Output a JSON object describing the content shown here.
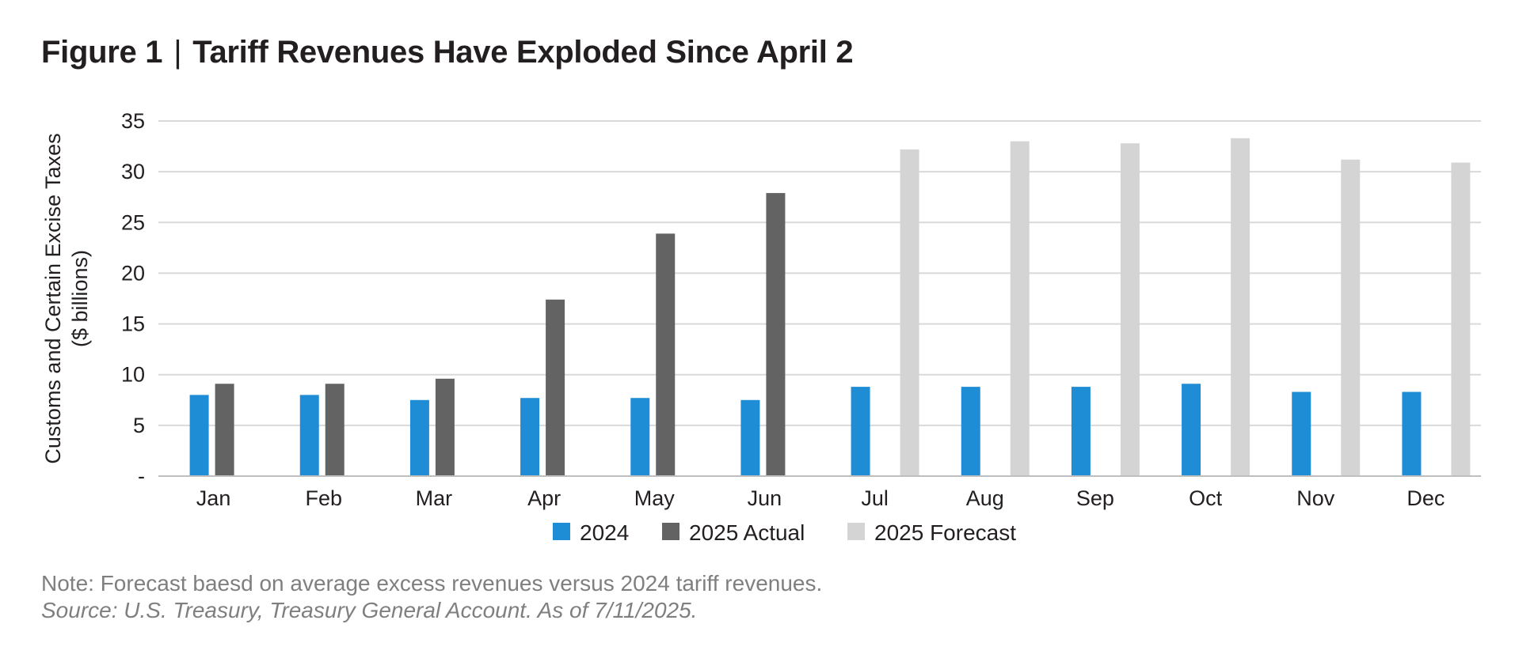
{
  "title": {
    "figure_label": "Figure 1",
    "separator": "|",
    "text": "Tariff Revenues Have Exploded Since April 2"
  },
  "chart_data": {
    "type": "bar",
    "categories": [
      "Jan",
      "Feb",
      "Mar",
      "Apr",
      "May",
      "Jun",
      "Jul",
      "Aug",
      "Sep",
      "Oct",
      "Nov",
      "Dec"
    ],
    "series": [
      {
        "name": "2024",
        "color": "#1f8dd6",
        "values": [
          8.0,
          8.0,
          7.5,
          7.7,
          7.7,
          7.5,
          8.8,
          8.8,
          8.8,
          9.1,
          8.3,
          8.3
        ]
      },
      {
        "name": "2025 Actual",
        "color": "#636363",
        "values": [
          9.1,
          9.1,
          9.6,
          17.4,
          23.9,
          27.9,
          null,
          null,
          null,
          null,
          null,
          null
        ]
      },
      {
        "name": "2025 Forecast",
        "color": "#d4d4d4",
        "values": [
          null,
          null,
          null,
          null,
          null,
          null,
          32.2,
          33.0,
          32.8,
          33.3,
          31.2,
          30.9
        ]
      }
    ],
    "ylabel_lines": [
      "Customs and Certain Excise Taxes",
      "($ billions)"
    ],
    "xlabel": "",
    "ylim": [
      0,
      35
    ],
    "yticks": [
      {
        "value": 0,
        "label": "-"
      },
      {
        "value": 5,
        "label": "5"
      },
      {
        "value": 10,
        "label": "10"
      },
      {
        "value": 15,
        "label": "15"
      },
      {
        "value": 20,
        "label": "20"
      },
      {
        "value": 25,
        "label": "25"
      },
      {
        "value": 30,
        "label": "30"
      },
      {
        "value": 35,
        "label": "35"
      }
    ],
    "grid": true,
    "gridline_color": "#d9d9d9",
    "legend_position": "bottom-center"
  },
  "footnotes": {
    "note": "Note: Forecast baesd on average excess revenues versus 2024 tariff revenues.",
    "source": "Source: U.S. Treasury, Treasury General Account. As of 7/11/2025."
  }
}
